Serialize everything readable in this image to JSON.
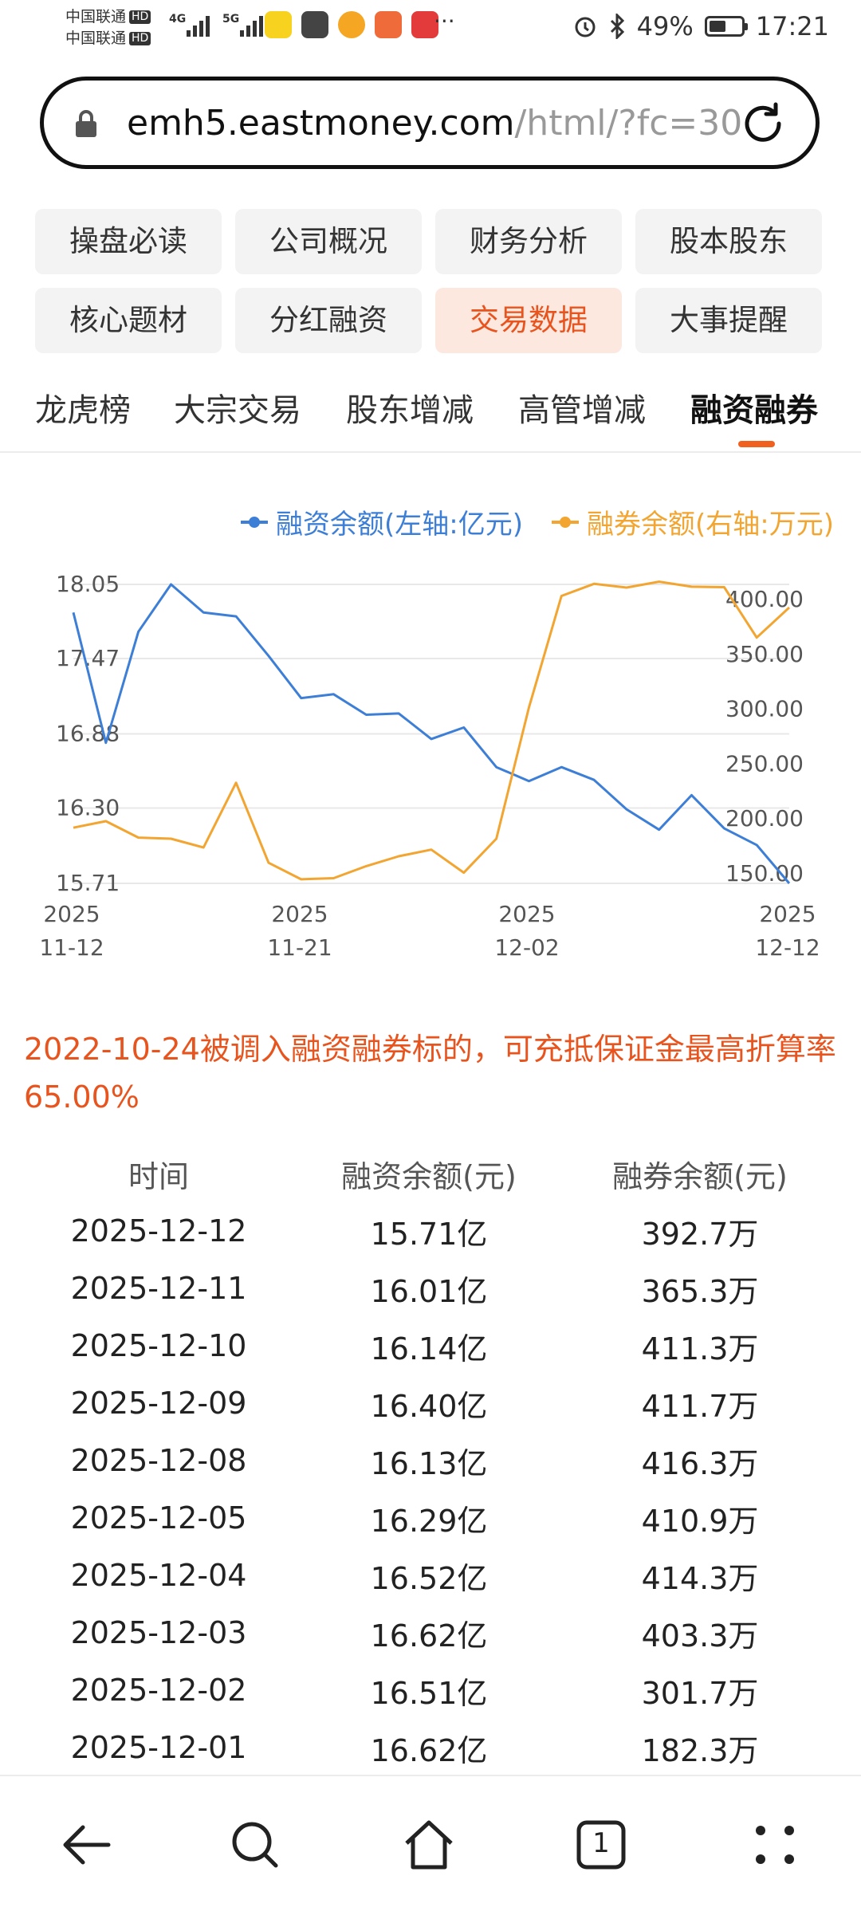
{
  "status_bar": {
    "carrier_1": "中国联通",
    "carrier_2": "中国联通",
    "hd": "HD",
    "sig1_label": "4G",
    "sig2_label": "5G",
    "more": "···",
    "battery": "49%",
    "time": "17:21"
  },
  "browser": {
    "url_host": "emh5.eastmoney.com",
    "url_path": "/html/?fc=30"
  },
  "grid_buttons": [
    {
      "label": "操盘必读",
      "active": false
    },
    {
      "label": "公司概况",
      "active": false
    },
    {
      "label": "财务分析",
      "active": false
    },
    {
      "label": "股本股东",
      "active": false
    },
    {
      "label": "核心题材",
      "active": false
    },
    {
      "label": "分红融资",
      "active": false
    },
    {
      "label": "交易数据",
      "active": true
    },
    {
      "label": "大事提醒",
      "active": false
    }
  ],
  "tabs": [
    {
      "label": "龙虎榜",
      "active": false
    },
    {
      "label": "大宗交易",
      "active": false
    },
    {
      "label": "股东增减",
      "active": false
    },
    {
      "label": "高管增减",
      "active": false
    },
    {
      "label": "融资融券",
      "active": true
    }
  ],
  "chart_data": {
    "type": "line",
    "x": [
      "2025-11-12",
      "2025-11-13",
      "2025-11-14",
      "2025-11-17",
      "2025-11-18",
      "2025-11-19",
      "2025-11-20",
      "2025-11-21",
      "2025-11-24",
      "2025-11-25",
      "2025-11-26",
      "2025-11-27",
      "2025-11-28",
      "2025-12-01",
      "2025-12-02",
      "2025-12-03",
      "2025-12-04",
      "2025-12-05",
      "2025-12-08",
      "2025-12-09",
      "2025-12-10",
      "2025-12-11",
      "2025-12-12"
    ],
    "x_tick_labels": [
      {
        "year": "2025",
        "date": "11-12"
      },
      {
        "year": "2025",
        "date": "11-21"
      },
      {
        "year": "2025",
        "date": "12-02"
      },
      {
        "year": "2025",
        "date": "12-12"
      }
    ],
    "left_axis": {
      "ticks": [
        "18.05",
        "17.47",
        "16.88",
        "16.30",
        "15.71"
      ],
      "ylim": [
        15.71,
        18.05
      ]
    },
    "right_axis": {
      "ticks": [
        "400.00",
        "350.00",
        "300.00",
        "250.00",
        "200.00",
        "150.00"
      ],
      "ylim": [
        150,
        400
      ]
    },
    "grid": true,
    "legend_placement": "top-right",
    "series": [
      {
        "name": "融资余额(左轴:亿元)",
        "axis": "left",
        "color": "#3d7fd6",
        "values": [
          17.83,
          16.81,
          17.68,
          18.05,
          17.83,
          17.8,
          17.49,
          17.16,
          17.19,
          17.03,
          17.04,
          16.84,
          16.93,
          16.62,
          16.51,
          16.62,
          16.52,
          16.29,
          16.13,
          16.4,
          16.14,
          16.01,
          15.71
        ]
      },
      {
        "name": "融券余额(右轴:万元)",
        "axis": "right",
        "color": "#f2a531",
        "values": [
          192,
          198,
          183,
          182,
          174,
          233,
          160,
          145,
          146,
          157,
          166,
          172,
          151,
          182,
          301.7,
          403.3,
          414.3,
          410.9,
          416.3,
          411.7,
          411.3,
          365.3,
          392.7
        ]
      }
    ]
  },
  "note": "2022-10-24被调入融资融券标的，可充抵保证金最高折算率65.00%",
  "table": {
    "headers": [
      "时间",
      "融资余额(元)",
      "融券余额(元)"
    ],
    "rows": [
      [
        "2025-12-12",
        "15.71亿",
        "392.7万"
      ],
      [
        "2025-12-11",
        "16.01亿",
        "365.3万"
      ],
      [
        "2025-12-10",
        "16.14亿",
        "411.3万"
      ],
      [
        "2025-12-09",
        "16.40亿",
        "411.7万"
      ],
      [
        "2025-12-08",
        "16.13亿",
        "416.3万"
      ],
      [
        "2025-12-05",
        "16.29亿",
        "410.9万"
      ],
      [
        "2025-12-04",
        "16.52亿",
        "414.3万"
      ],
      [
        "2025-12-03",
        "16.62亿",
        "403.3万"
      ],
      [
        "2025-12-02",
        "16.51亿",
        "301.7万"
      ],
      [
        "2025-12-01",
        "16.62亿",
        "182.3万"
      ]
    ]
  },
  "bottom_nav": {
    "tab_count": "1"
  },
  "colors": {
    "accent": "#e8541e",
    "series_left": "#3d7fd6",
    "series_right": "#f2a531",
    "active_bg": "#fde8e0"
  }
}
